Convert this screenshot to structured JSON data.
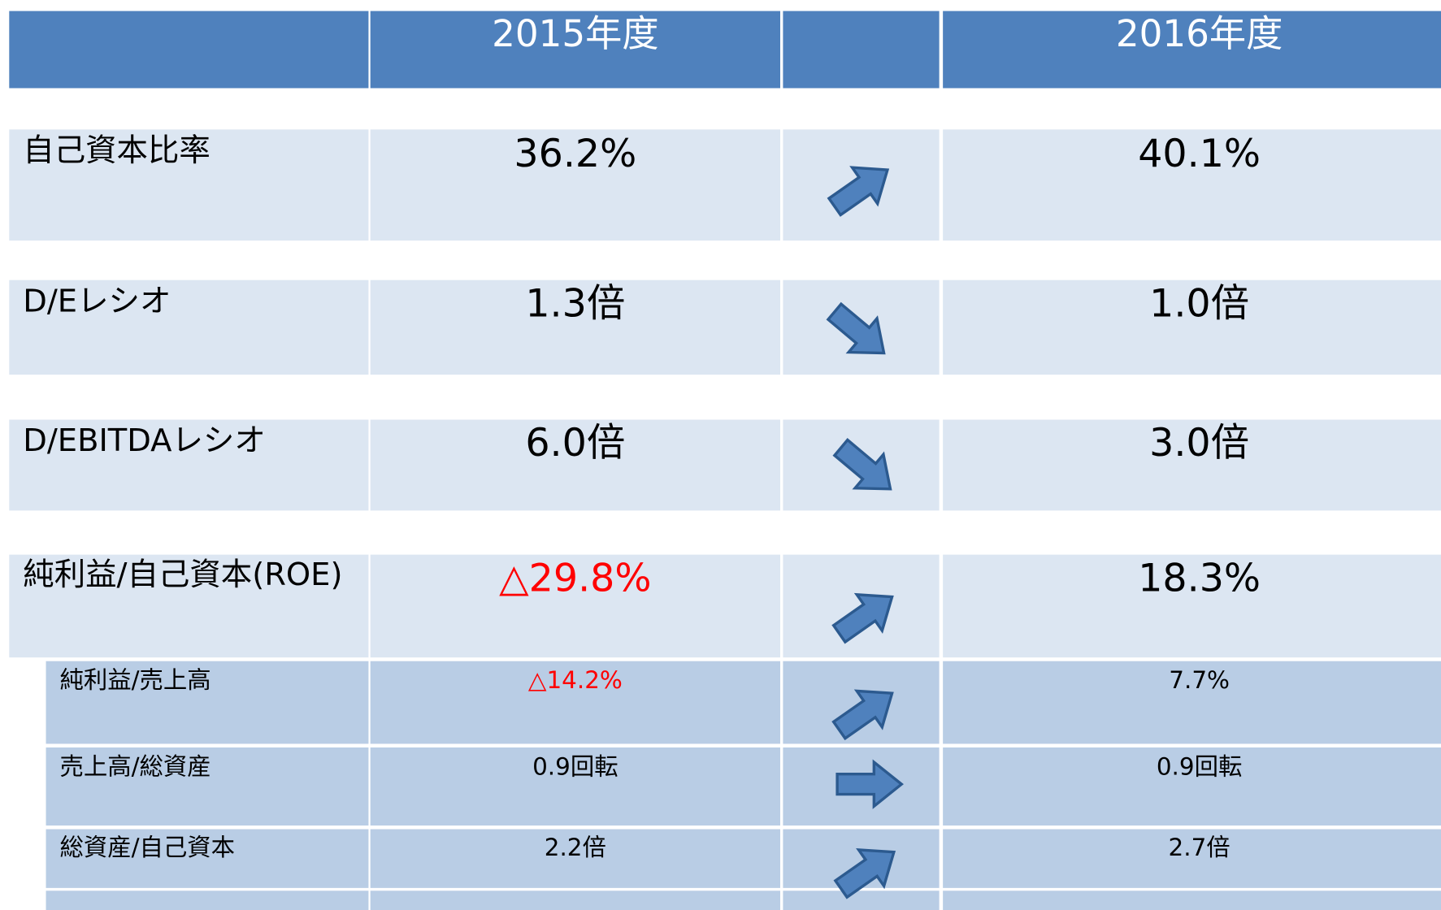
{
  "header": {
    "year1": "2015年度",
    "year2": "2016年度"
  },
  "rows": [
    {
      "label": "自己資本比率",
      "v2015": "36.2%",
      "v2016": "40.1%"
    },
    {
      "label": "D/Eレシオ",
      "v2015": "1.3倍",
      "v2016": "1.0倍"
    },
    {
      "label": "D/EBITDAレシオ",
      "v2015": "6.0倍",
      "v2016": "3.0倍"
    },
    {
      "label": "純利益/自己資本(ROE)",
      "v2015": "△29.8%",
      "v2016": "18.3%"
    }
  ],
  "subrows": [
    {
      "label": "純利益/売上高",
      "v2015": "△14.2%",
      "v2016": "7.7%"
    },
    {
      "label": "売上高/総資産",
      "v2015": "0.9回転",
      "v2016": "0.9回転"
    },
    {
      "label": "総資産/自己資本",
      "v2015": "2.2倍",
      "v2016": "2.7倍"
    }
  ]
}
